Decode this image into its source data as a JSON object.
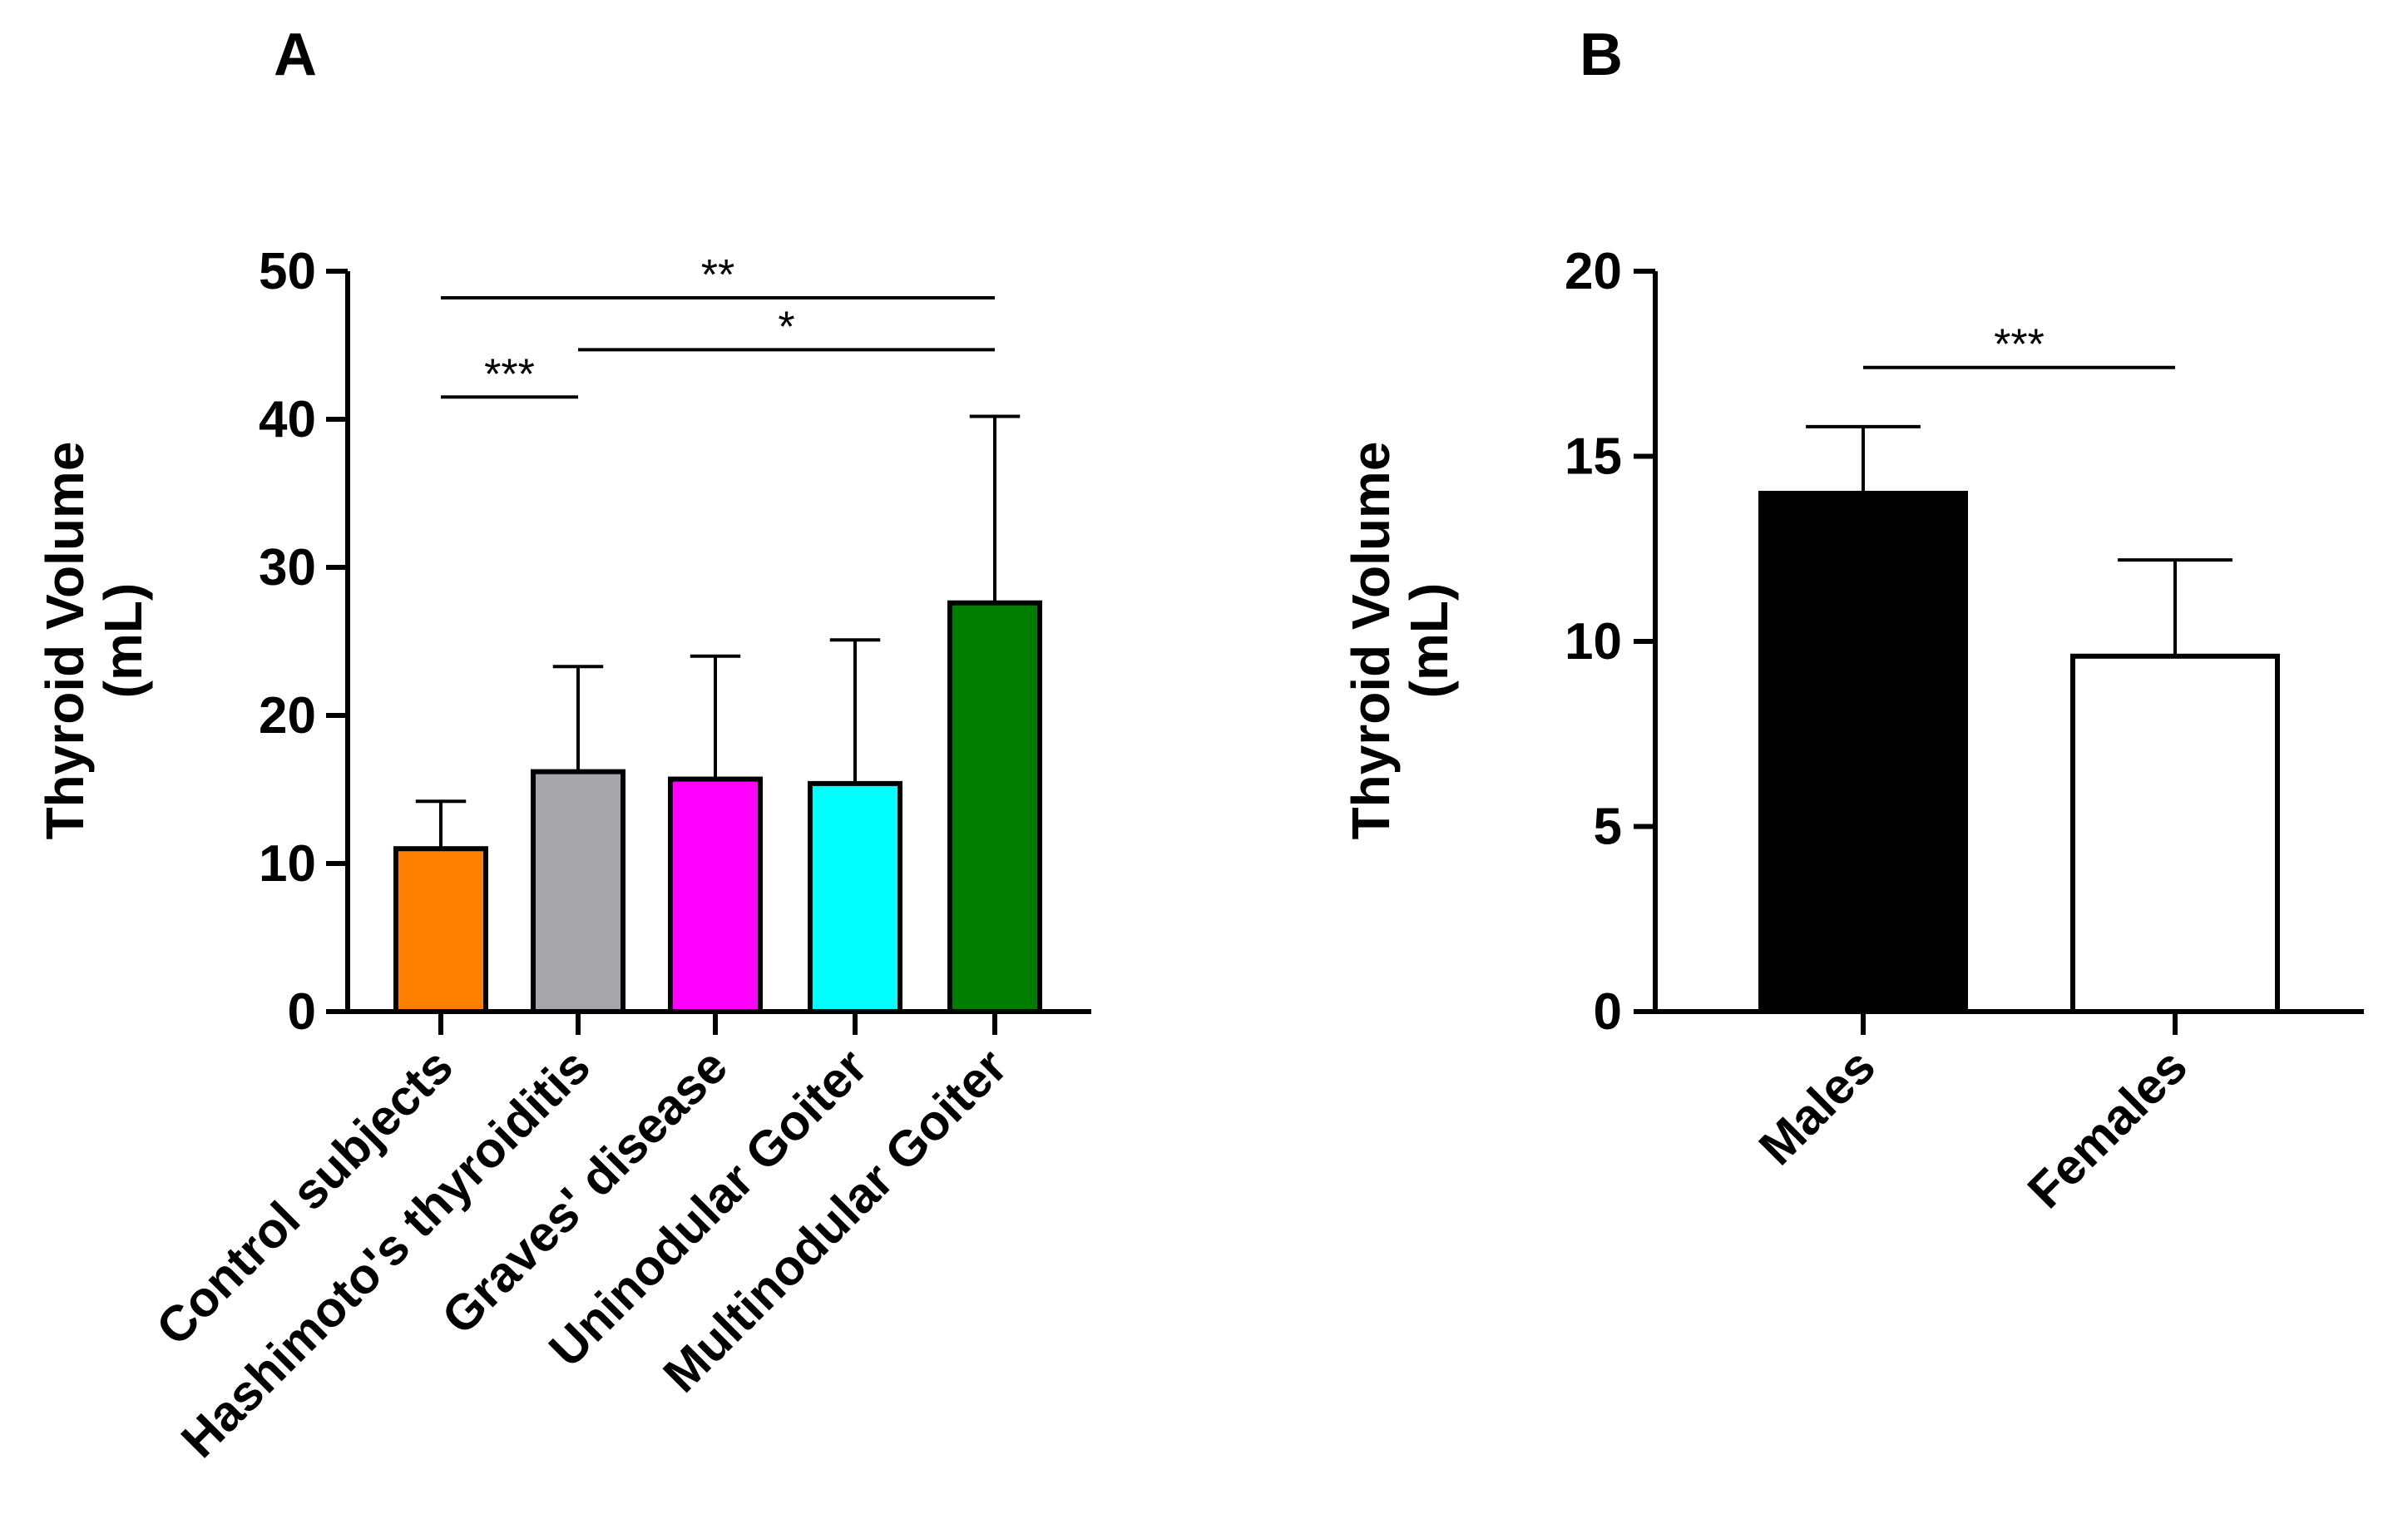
{
  "chart_data": [
    {
      "panel": "A",
      "type": "bar",
      "title": "",
      "xlabel": "",
      "ylabel_lines": [
        "Thyroid Volume",
        "(mL)"
      ],
      "ylim": [
        0,
        50
      ],
      "yticks": [
        0,
        10,
        20,
        30,
        40,
        50
      ],
      "categories": [
        "Control subjects",
        "Hashimoto's thyroiditis",
        "Graves' disease",
        "Uninodular Goiter",
        "Multinodular Goiter"
      ],
      "values": [
        11,
        16.2,
        15.7,
        15.4,
        27.6
      ],
      "errors": [
        3.2,
        7.1,
        8.3,
        9.7,
        12.6
      ],
      "colors": [
        "#ff7f00",
        "#a6a6ab",
        "#ff00ff",
        "#00ffff",
        "#007d00"
      ],
      "significance": [
        {
          "from": 0,
          "to": 4,
          "y": 48.2,
          "label": "**"
        },
        {
          "from": 1,
          "to": 4,
          "y": 44.7,
          "label": "*"
        },
        {
          "from": 0,
          "to": 1,
          "y": 41.5,
          "label": "***"
        }
      ]
    },
    {
      "panel": "B",
      "type": "bar",
      "title": "",
      "xlabel": "",
      "ylabel_lines": [
        "Thyroid Volume",
        "(mL)"
      ],
      "ylim": [
        0,
        20
      ],
      "yticks": [
        0,
        5,
        10,
        15,
        20
      ],
      "categories": [
        "Males",
        "Females"
      ],
      "values": [
        14,
        9.6
      ],
      "errors": [
        1.8,
        2.6
      ],
      "colors": [
        "#000000",
        "#ffffff"
      ],
      "significance": [
        {
          "from": 0,
          "to": 1,
          "y": 17.4,
          "label": "***"
        }
      ]
    }
  ]
}
